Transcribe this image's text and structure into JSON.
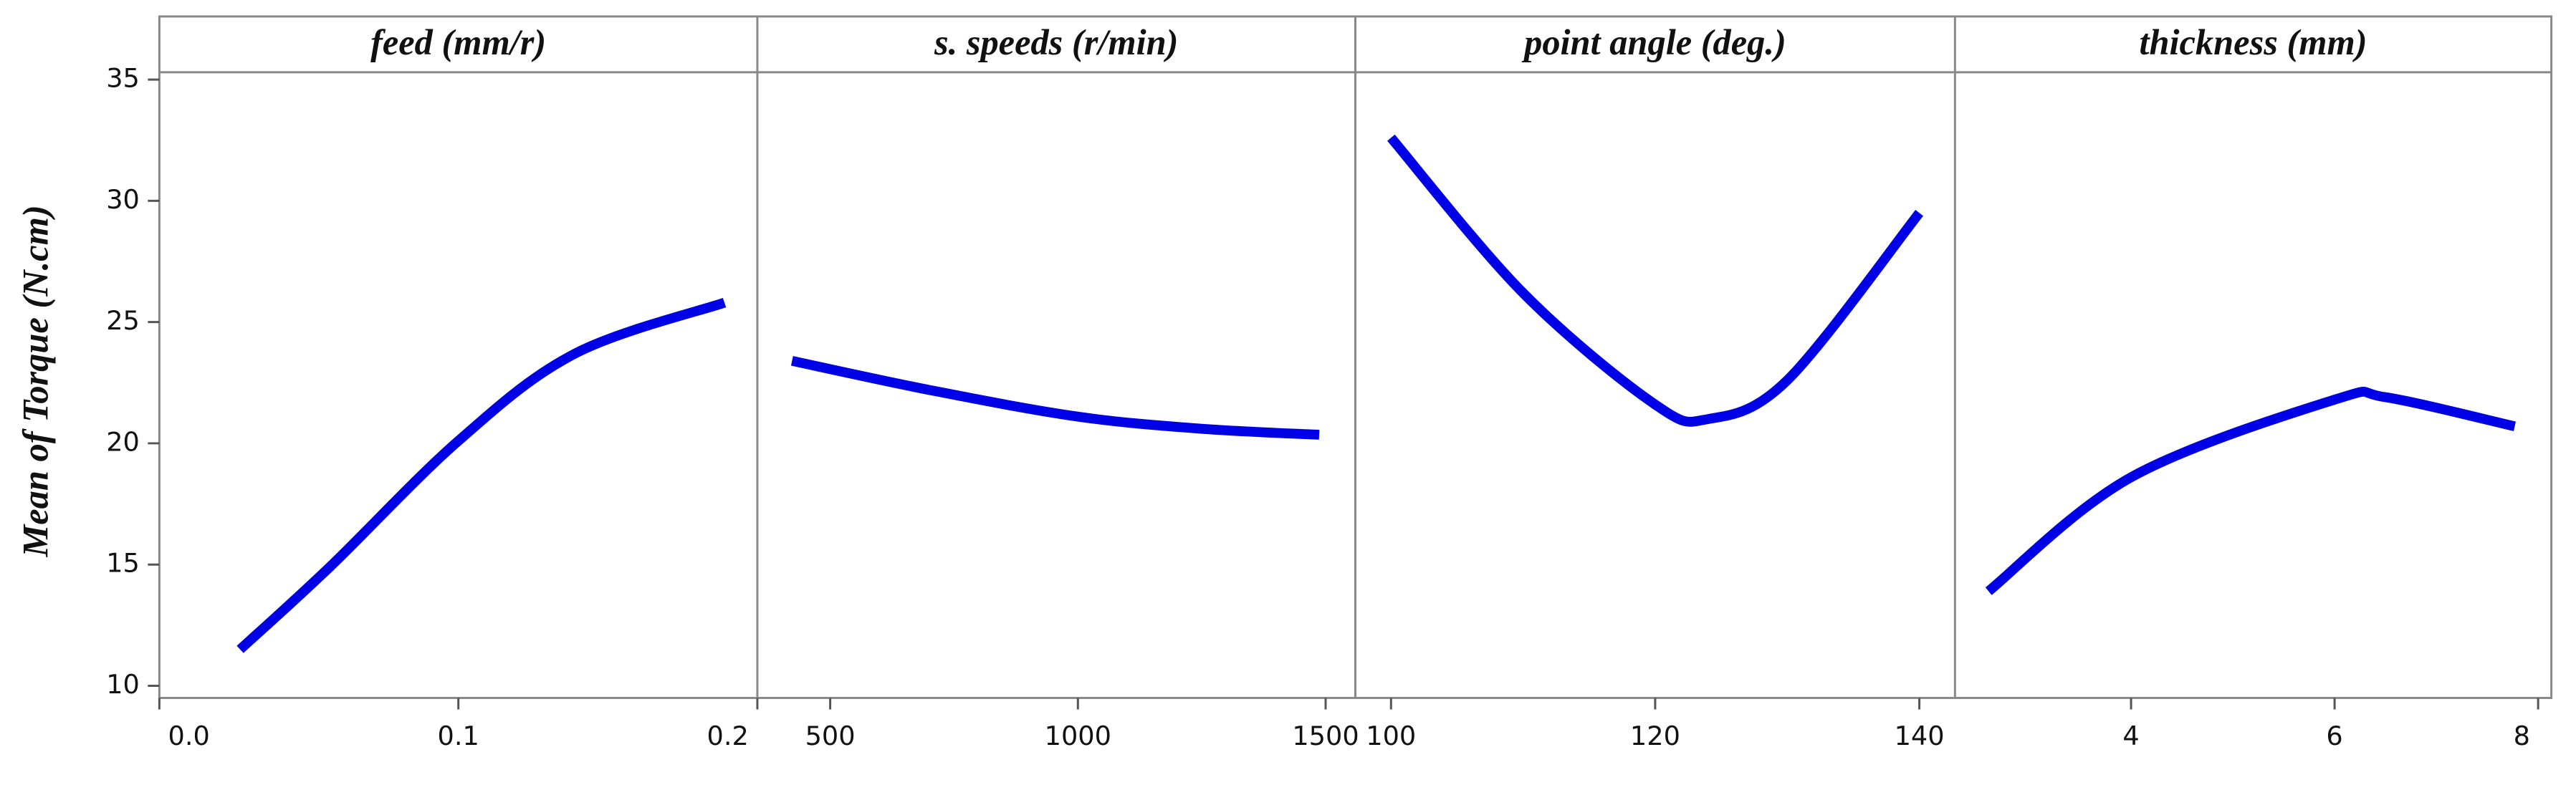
{
  "chart_data": {
    "type": "line",
    "y_label": "Mean of Torque (N.cm)",
    "ylim": [
      9.5,
      35.3
    ],
    "yticks": [
      10,
      15,
      20,
      25,
      30,
      35
    ],
    "color": "#0000e6",
    "panels": [
      {
        "title": "feed (mm/r)",
        "xlim": [
          0,
          0.2
        ],
        "xticks": [
          {
            "value": 0,
            "label": "0.0"
          },
          0.1,
          0.2
        ],
        "x": [
          0.027,
          0.057,
          0.1,
          0.139,
          0.189
        ],
        "values": [
          11.5,
          14.9,
          20.1,
          23.7,
          25.8
        ]
      },
      {
        "title": "s. speeds (r/min)",
        "xlim": [
          353,
          1560
        ],
        "xticks": [
          500,
          1000,
          1500
        ],
        "x": [
          423,
          700,
          1000,
          1250,
          1487
        ],
        "values": [
          23.4,
          22.2,
          21.1,
          20.6,
          20.35
        ]
      },
      {
        "title": "point angle (deg.)",
        "xlim": [
          97.3,
          142.7
        ],
        "xticks": [
          100,
          120,
          140
        ],
        "x": [
          100,
          110,
          120,
          124,
          130,
          140
        ],
        "values": [
          32.6,
          26.2,
          21.6,
          21.0,
          22.6,
          29.5
        ]
      },
      {
        "title": "thickness (mm)",
        "xlim": [
          2.27,
          8.13
        ],
        "xticks": [
          4,
          6,
          8
        ],
        "x": [
          2.6,
          4,
          6,
          6.5,
          7.77
        ],
        "values": [
          13.9,
          18.6,
          21.8,
          21.9,
          20.7
        ]
      }
    ]
  }
}
